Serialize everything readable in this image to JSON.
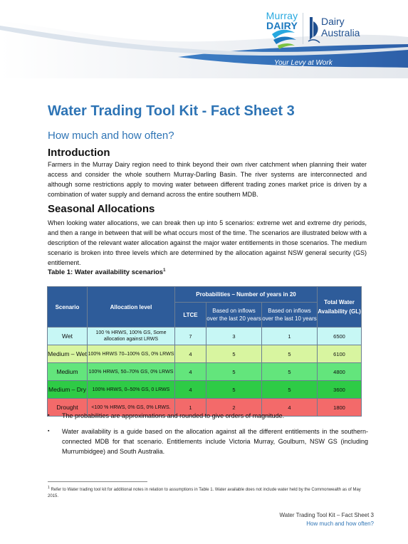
{
  "header": {
    "logo_murray_line1": "Murray",
    "logo_murray_line2": "DAIRY",
    "logo_da_line1": "Dairy",
    "logo_da_line2": "Australia",
    "tagline": "Your Levy at Work"
  },
  "title": "Water Trading Tool Kit - Fact Sheet 3",
  "subtitle": "How much and how often?",
  "sections": {
    "intro_heading": "Introduction",
    "intro_text": "Farmers in the Murray Dairy region need to think beyond their own river catchment when planning their water access and consider the whole southern Murray-Darling Basin. The river systems are interconnected and although some restrictions apply to moving water between different trading zones market price is driven by a combination of water supply and demand across the entire southern MDB.",
    "seasonal_heading": "Seasonal Allocations",
    "seasonal_text": "When looking water allocations, we can break then up into 5 scenarios: extreme wet and extreme dry periods, and then a range in between that will be what occurs most of the time.   The scenarios are illustrated below with a description of the relevant water allocation against the major water entitlements in those scenarios.   The medium scenario is broken into three levels which are determined by the allocation against NSW general security (GS) entitlement."
  },
  "table": {
    "caption": "Table 1: Water availability scenarios",
    "caption_sup": "1",
    "headers": {
      "scenario": "Scenario",
      "allocation": "Allocation level",
      "probabilities": "Probabilities – Number of years in 20",
      "ltce": "LTCE",
      "last20": "Based on inflows over the last 20 years",
      "last10": "Based on inflows over the last 10 years",
      "total": "Total Water Availability (GL)"
    },
    "rows": [
      {
        "scenario": "Wet",
        "allocation": "100 % HRWS, 100% GS, Some allocation against LRWS",
        "ltce": "7",
        "last20": "3",
        "last10": "1",
        "total": "6500"
      },
      {
        "scenario": "Medium – Wet",
        "allocation": "100% HRWS 70–100% GS, 0% LRWS",
        "ltce": "4",
        "last20": "5",
        "last10": "5",
        "total": "6100"
      },
      {
        "scenario": "Medium",
        "allocation": "100% HRWS, 50–70% GS, 0% LRWS",
        "ltce": "4",
        "last20": "5",
        "last10": "5",
        "total": "4800"
      },
      {
        "scenario": "Medium – Dry",
        "allocation": "100% HRWS, 0–50% GS, 0 LRWS",
        "ltce": "4",
        "last20": "5",
        "last10": "5",
        "total": "3600"
      },
      {
        "scenario": "Drought",
        "allocation": "<100 % HRWS, 0% GS, 0% LRWS.",
        "ltce": "1",
        "last20": "2",
        "last10": "4",
        "total": "1800"
      }
    ]
  },
  "bullets": [
    "The probabilities are approximations and rounded to give orders of magnitude.",
    "Water availability is a guide based on the allocation against all the different entitlements in the southern-connected MDB for that scenario. Entitlements include Victoria Murray, Goulburn, NSW GS (including Murrumbidgee) and South Australia."
  ],
  "bullet_glyph": "▪",
  "footnote": {
    "marker": "1",
    "text": "Refer to Water trading tool kit for additional notes in relation to assumptions in Table 1.  Water available does not include water held by the Commonwealth as of May 2015."
  },
  "footer": {
    "line1": "Water Trading Tool Kit – Fact Sheet 3",
    "line2": "How much and how often?"
  },
  "colors": {
    "title_blue": "#2e74b5",
    "table_header": "#2e5c9a",
    "wet": "#c7f7f5",
    "medium_wet": "#d8f5a0",
    "medium": "#63e57c",
    "medium_dry": "#2ecb46",
    "drought": "#f36a6a"
  }
}
